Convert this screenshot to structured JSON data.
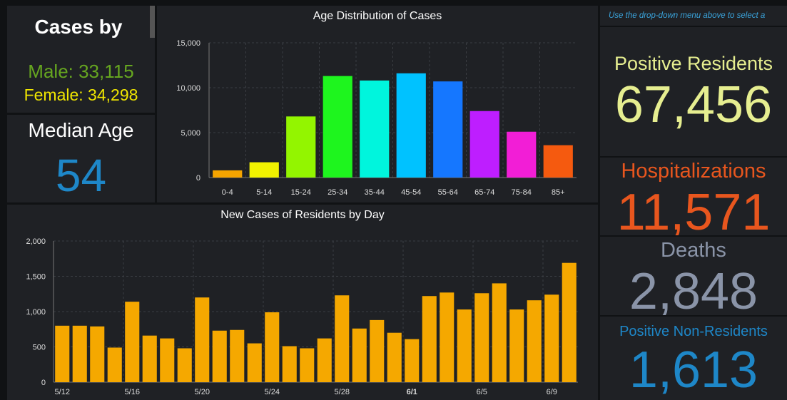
{
  "sex_panel": {
    "title": "Cases by",
    "male_label": "Male: 33,115",
    "female_label": "Female: 34,298"
  },
  "median_age": {
    "label": "Median Age",
    "value": "54"
  },
  "instructions": "Use the drop-down menu above to select a",
  "stats": {
    "positive_residents": {
      "label": "Positive Residents",
      "value": "67,456"
    },
    "hospitalizations": {
      "label": "Hospitalizations",
      "value": "11,571"
    },
    "deaths": {
      "label": "Deaths",
      "value": "2,848"
    },
    "positive_non_residents": {
      "label": "Positive Non-Residents",
      "value": "1,613"
    }
  },
  "colors": {
    "bar_day": "#f5a800",
    "male": "#66a620",
    "female": "#f0e600",
    "median": "#1e87c8"
  },
  "chart_data": [
    {
      "type": "bar",
      "title": "Age Distribution of Cases",
      "categories": [
        "0-4",
        "5-14",
        "15-24",
        "25-34",
        "35-44",
        "45-54",
        "55-64",
        "65-74",
        "75-84",
        "85+"
      ],
      "values": [
        800,
        1700,
        6800,
        11300,
        10800,
        11600,
        10700,
        7400,
        5100,
        3600
      ],
      "colors": [
        "#f5a400",
        "#f2f200",
        "#93f500",
        "#1ef51e",
        "#00f5dd",
        "#00c2ff",
        "#1577ff",
        "#be1eff",
        "#f21ed6",
        "#f55a0f"
      ],
      "ylim": [
        0,
        15000
      ],
      "yticks": [
        0,
        5000,
        10000,
        15000
      ],
      "ytick_labels": [
        "0",
        "5,000",
        "10,000",
        "15,000"
      ]
    },
    {
      "type": "bar",
      "title": "New Cases of Residents by Day",
      "x": [
        "5/12",
        "5/13",
        "5/14",
        "5/15",
        "5/16",
        "5/17",
        "5/18",
        "5/19",
        "5/20",
        "5/21",
        "5/22",
        "5/23",
        "5/24",
        "5/25",
        "5/26",
        "5/27",
        "5/28",
        "5/29",
        "5/30",
        "5/31",
        "6/1",
        "6/2",
        "6/3",
        "6/4",
        "6/5",
        "6/6",
        "6/7",
        "6/8",
        "6/9",
        "6/10"
      ],
      "values": [
        800,
        800,
        790,
        490,
        1140,
        660,
        620,
        480,
        1200,
        730,
        740,
        550,
        990,
        510,
        480,
        620,
        1230,
        760,
        880,
        700,
        610,
        1220,
        1270,
        1030,
        1260,
        1400,
        1030,
        1160,
        1240,
        1690
      ],
      "xtick_labels": [
        {
          "index": 0,
          "label": "5/12",
          "bold": false
        },
        {
          "index": 4,
          "label": "5/16",
          "bold": false
        },
        {
          "index": 8,
          "label": "5/20",
          "bold": false
        },
        {
          "index": 12,
          "label": "5/24",
          "bold": false
        },
        {
          "index": 16,
          "label": "5/28",
          "bold": false
        },
        {
          "index": 20,
          "label": "6/1",
          "bold": true
        },
        {
          "index": 24,
          "label": "6/5",
          "bold": false
        },
        {
          "index": 28,
          "label": "6/9",
          "bold": false
        }
      ],
      "ylim": [
        0,
        2000
      ],
      "yticks": [
        0,
        500,
        1000,
        1500,
        2000
      ],
      "ytick_labels": [
        "0",
        "500",
        "1,000",
        "1,500",
        "2,000"
      ]
    }
  ]
}
